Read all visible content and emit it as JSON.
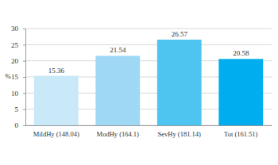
{
  "chart_data": {
    "type": "bar",
    "y_label": "%",
    "categories": [
      "MildHy (148.04)",
      "ModHy (164.1)",
      "SevHy (181.14)",
      "Tot (161.51)"
    ],
    "values": [
      15.36,
      21.54,
      26.57,
      20.58
    ],
    "colors": [
      "#c9e8f8",
      "#9fd8f4",
      "#4ec5f0",
      "#00aeef"
    ],
    "ylim": [
      0,
      30
    ],
    "yticks": [
      0,
      5,
      10,
      15,
      20,
      25,
      30
    ],
    "grid": true,
    "data_labels": true
  }
}
